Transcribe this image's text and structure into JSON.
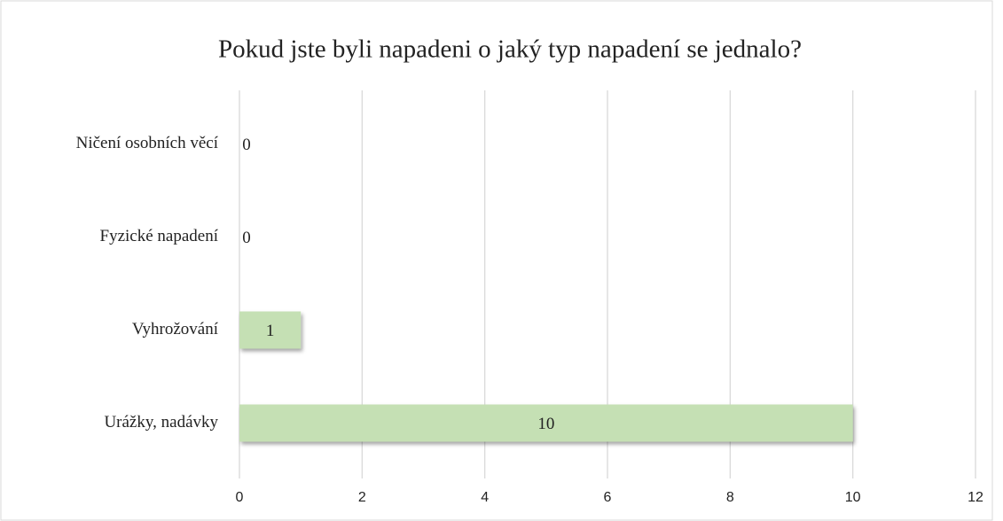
{
  "chart_data": {
    "type": "bar",
    "orientation": "horizontal",
    "title": "Pokud jste byli napadeni o jaký typ napadení se jednalo?",
    "categories": [
      "Ničení osobních věcí",
      "Fyzické napadení",
      "Vyhrožování",
      "Urážky, nadávky"
    ],
    "values": [
      0,
      0,
      1,
      10
    ],
    "color": "#c5e0b4",
    "xlim": [
      0,
      12
    ],
    "xticks": [
      0,
      2,
      4,
      6,
      8,
      10,
      12
    ],
    "grid": true
  }
}
